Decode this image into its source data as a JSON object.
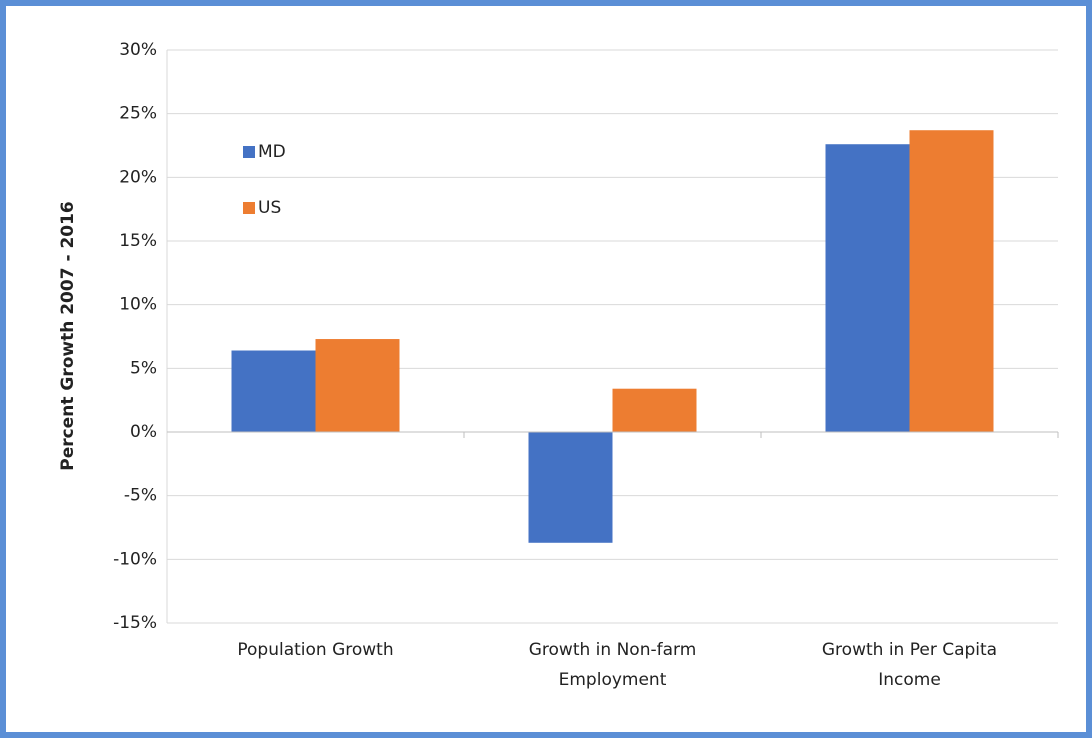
{
  "chart_data": {
    "type": "bar",
    "ylabel": "Percent Growth 2007 - 2016",
    "categories": [
      "Population Growth",
      "Growth in Non-farm Employment",
      "Growth in Per Capita Income"
    ],
    "series": [
      {
        "name": "MD",
        "color": "#4472c4",
        "values": [
          6.4,
          -8.7,
          22.6
        ]
      },
      {
        "name": "US",
        "color": "#ed7d31",
        "values": [
          7.3,
          3.4,
          23.7
        ]
      }
    ],
    "ylim": [
      -15,
      30
    ],
    "yticks": [
      {
        "value": -15,
        "label": "-15%"
      },
      {
        "value": -10,
        "label": "-10%"
      },
      {
        "value": -5,
        "label": "-5%"
      },
      {
        "value": 0,
        "label": "0%"
      },
      {
        "value": 5,
        "label": "5%"
      },
      {
        "value": 10,
        "label": "10%"
      },
      {
        "value": 15,
        "label": "15%"
      },
      {
        "value": 20,
        "label": "20%"
      },
      {
        "value": 25,
        "label": "25%"
      },
      {
        "value": 30,
        "label": "30%"
      }
    ],
    "grid": true,
    "legend": "upper left"
  }
}
